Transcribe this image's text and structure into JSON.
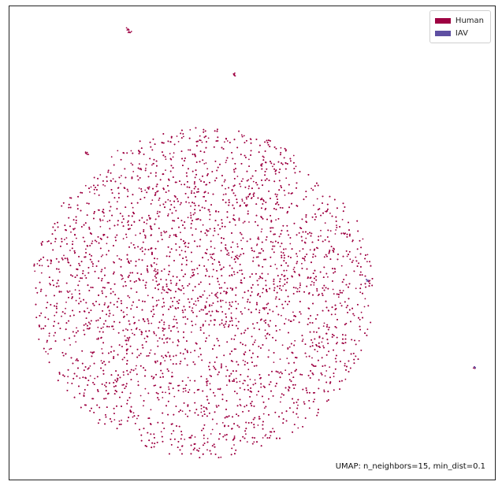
{
  "chart_data": {
    "type": "scatter",
    "title": "",
    "xlabel": "",
    "ylabel": "",
    "grid": false,
    "legend_position": "top-right",
    "footer_text": "UMAP: n_neighbors=15, min_dist=0.1",
    "series": [
      {
        "name": "Human",
        "color": "#9e0142",
        "approx_point_count": 14000
      },
      {
        "name": "IAV",
        "color": "#5e4fa2",
        "approx_point_count": 5
      }
    ]
  }
}
